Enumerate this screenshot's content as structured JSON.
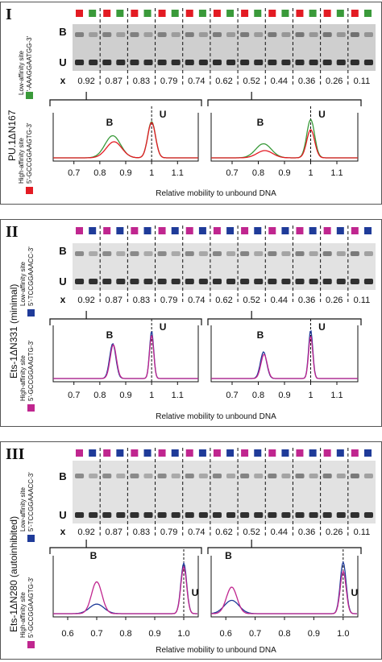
{
  "x_label": "x",
  "x_values": [
    "0.92",
    "0.87",
    "0.83",
    "0.79",
    "0.74",
    "0.62",
    "0.52",
    "0.44",
    "0.36",
    "0.26",
    "0.11"
  ],
  "band_labels": {
    "bound": "B",
    "unbound": "U"
  },
  "axis_title": "Relative mobility to unbound DNA",
  "colors": {
    "red": "#e31b23",
    "green": "#3a9a3a",
    "blue": "#1f3b99",
    "magenta": "#c0268f"
  },
  "panels": [
    {
      "roman": "I",
      "protein": "PU.1ΔN167",
      "low_site_title": "Low-affinity site",
      "low_site_seq": "5'-AAAGGAATGG-3'",
      "high_site_title": "High-affinity site",
      "high_site_seq": "5'-GCCGGAAGTG-3'",
      "low_color": "#3a9a3a",
      "high_color": "#e31b23",
      "ticks": [
        "0.7",
        "0.8",
        "0.9",
        "1",
        "1.1"
      ]
    },
    {
      "roman": "II",
      "protein": "Ets-1ΔN331 (minimal)",
      "low_site_title": "Low-affinity site",
      "low_site_seq": "5'-TCCGGAAACC-3'",
      "high_site_title": "High-affinity site",
      "high_site_seq": "5'-GCCGGAAGTG-3'",
      "low_color": "#1f3b99",
      "high_color": "#c0268f",
      "ticks": [
        "0.7",
        "0.8",
        "0.9",
        "1",
        "1.1"
      ]
    },
    {
      "roman": "III",
      "protein": "Ets-1ΔN280 (autoinhibited)",
      "low_site_title": "Low-affinity site",
      "low_site_seq": "5'-TCCGGAAACC-3'",
      "high_site_title": "High-affinity site",
      "high_site_seq": "5'-GCCGGAAGTG-3'",
      "low_color": "#1f3b99",
      "high_color": "#c0268f",
      "ticks": [
        "0.6",
        "0.7",
        "0.8",
        "0.9",
        "1.0"
      ]
    }
  ]
}
